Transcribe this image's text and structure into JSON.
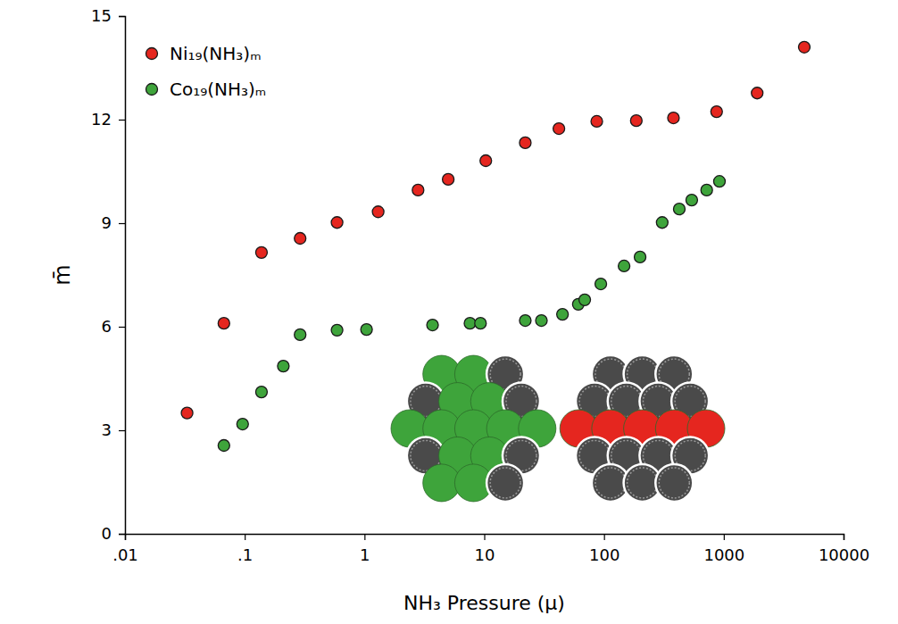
{
  "chart_data": {
    "type": "scatter",
    "x_label": "NH₃ Pressure (μ)",
    "y_label": "m̄",
    "log": "x",
    "grid": false,
    "legend": "top-left",
    "xlim": [
      0.01,
      10000
    ],
    "ylim": [
      0,
      15
    ],
    "xticks": [
      {
        "value": 0.01,
        "label": ".01"
      },
      {
        "value": 0.1,
        "label": ".1"
      },
      1,
      10,
      100,
      1000,
      10000
    ],
    "yticks": [
      0,
      3,
      6,
      9,
      12,
      15
    ],
    "series": [
      {
        "name": "Ni₁₉(NH₃)ₘ",
        "color": "#e5261f",
        "marker": "circle",
        "x": [
          0.033,
          0.067,
          0.138,
          0.29,
          0.59,
          1.3,
          2.8,
          5.0,
          10.3,
          22,
          42,
          87,
          186,
          380,
          871,
          1900,
          4700
        ],
        "values": [
          3.5,
          6.1,
          8.15,
          8.56,
          9.02,
          9.33,
          9.96,
          10.27,
          10.81,
          11.33,
          11.74,
          11.95,
          11.97,
          12.05,
          12.23,
          12.77,
          14.1
        ]
      },
      {
        "name": "Co₁₉(NH₃)ₘ",
        "color": "#3ea43b",
        "marker": "circle",
        "x": [
          0.067,
          0.096,
          0.138,
          0.21,
          0.29,
          0.59,
          1.04,
          3.7,
          7.6,
          9.3,
          22,
          30,
          45,
          61,
          69,
          94,
          147,
          200,
          306,
          425,
          540,
          720,
          920
        ],
        "values": [
          2.56,
          3.18,
          4.11,
          4.86,
          5.77,
          5.9,
          5.92,
          6.05,
          6.1,
          6.1,
          6.18,
          6.18,
          6.36,
          6.65,
          6.78,
          7.24,
          7.76,
          8.02,
          9.02,
          9.41,
          9.67,
          9.96,
          10.21
        ]
      }
    ]
  }
}
